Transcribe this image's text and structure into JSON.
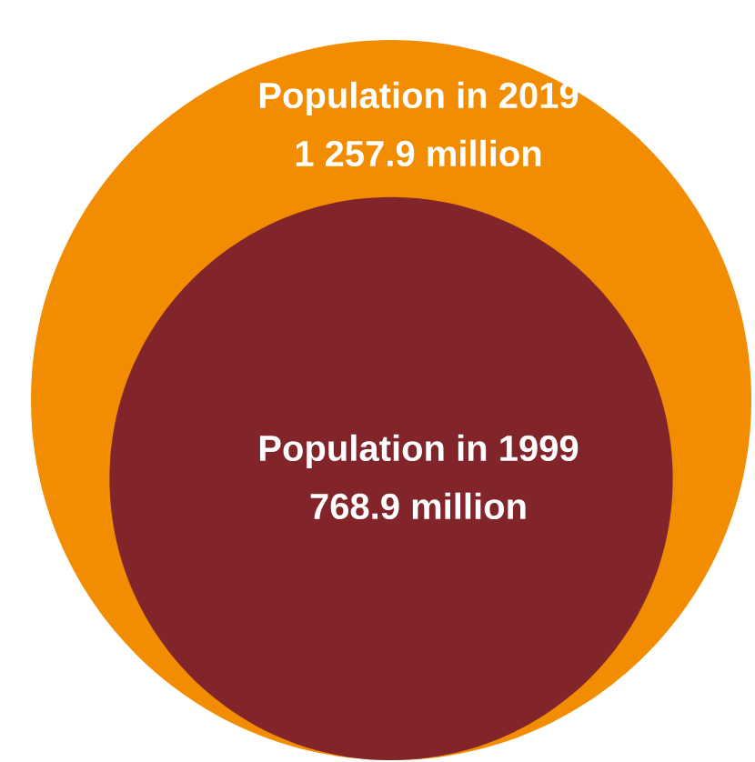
{
  "chart_data": {
    "type": "other",
    "categories": [
      "Population in 2019",
      "Population in 1999"
    ],
    "values": [
      1257.9,
      768.9
    ],
    "value_labels": [
      "1 257.9 million",
      "768.9 million"
    ],
    "colors": [
      "#f28c00",
      "#82252a"
    ]
  }
}
